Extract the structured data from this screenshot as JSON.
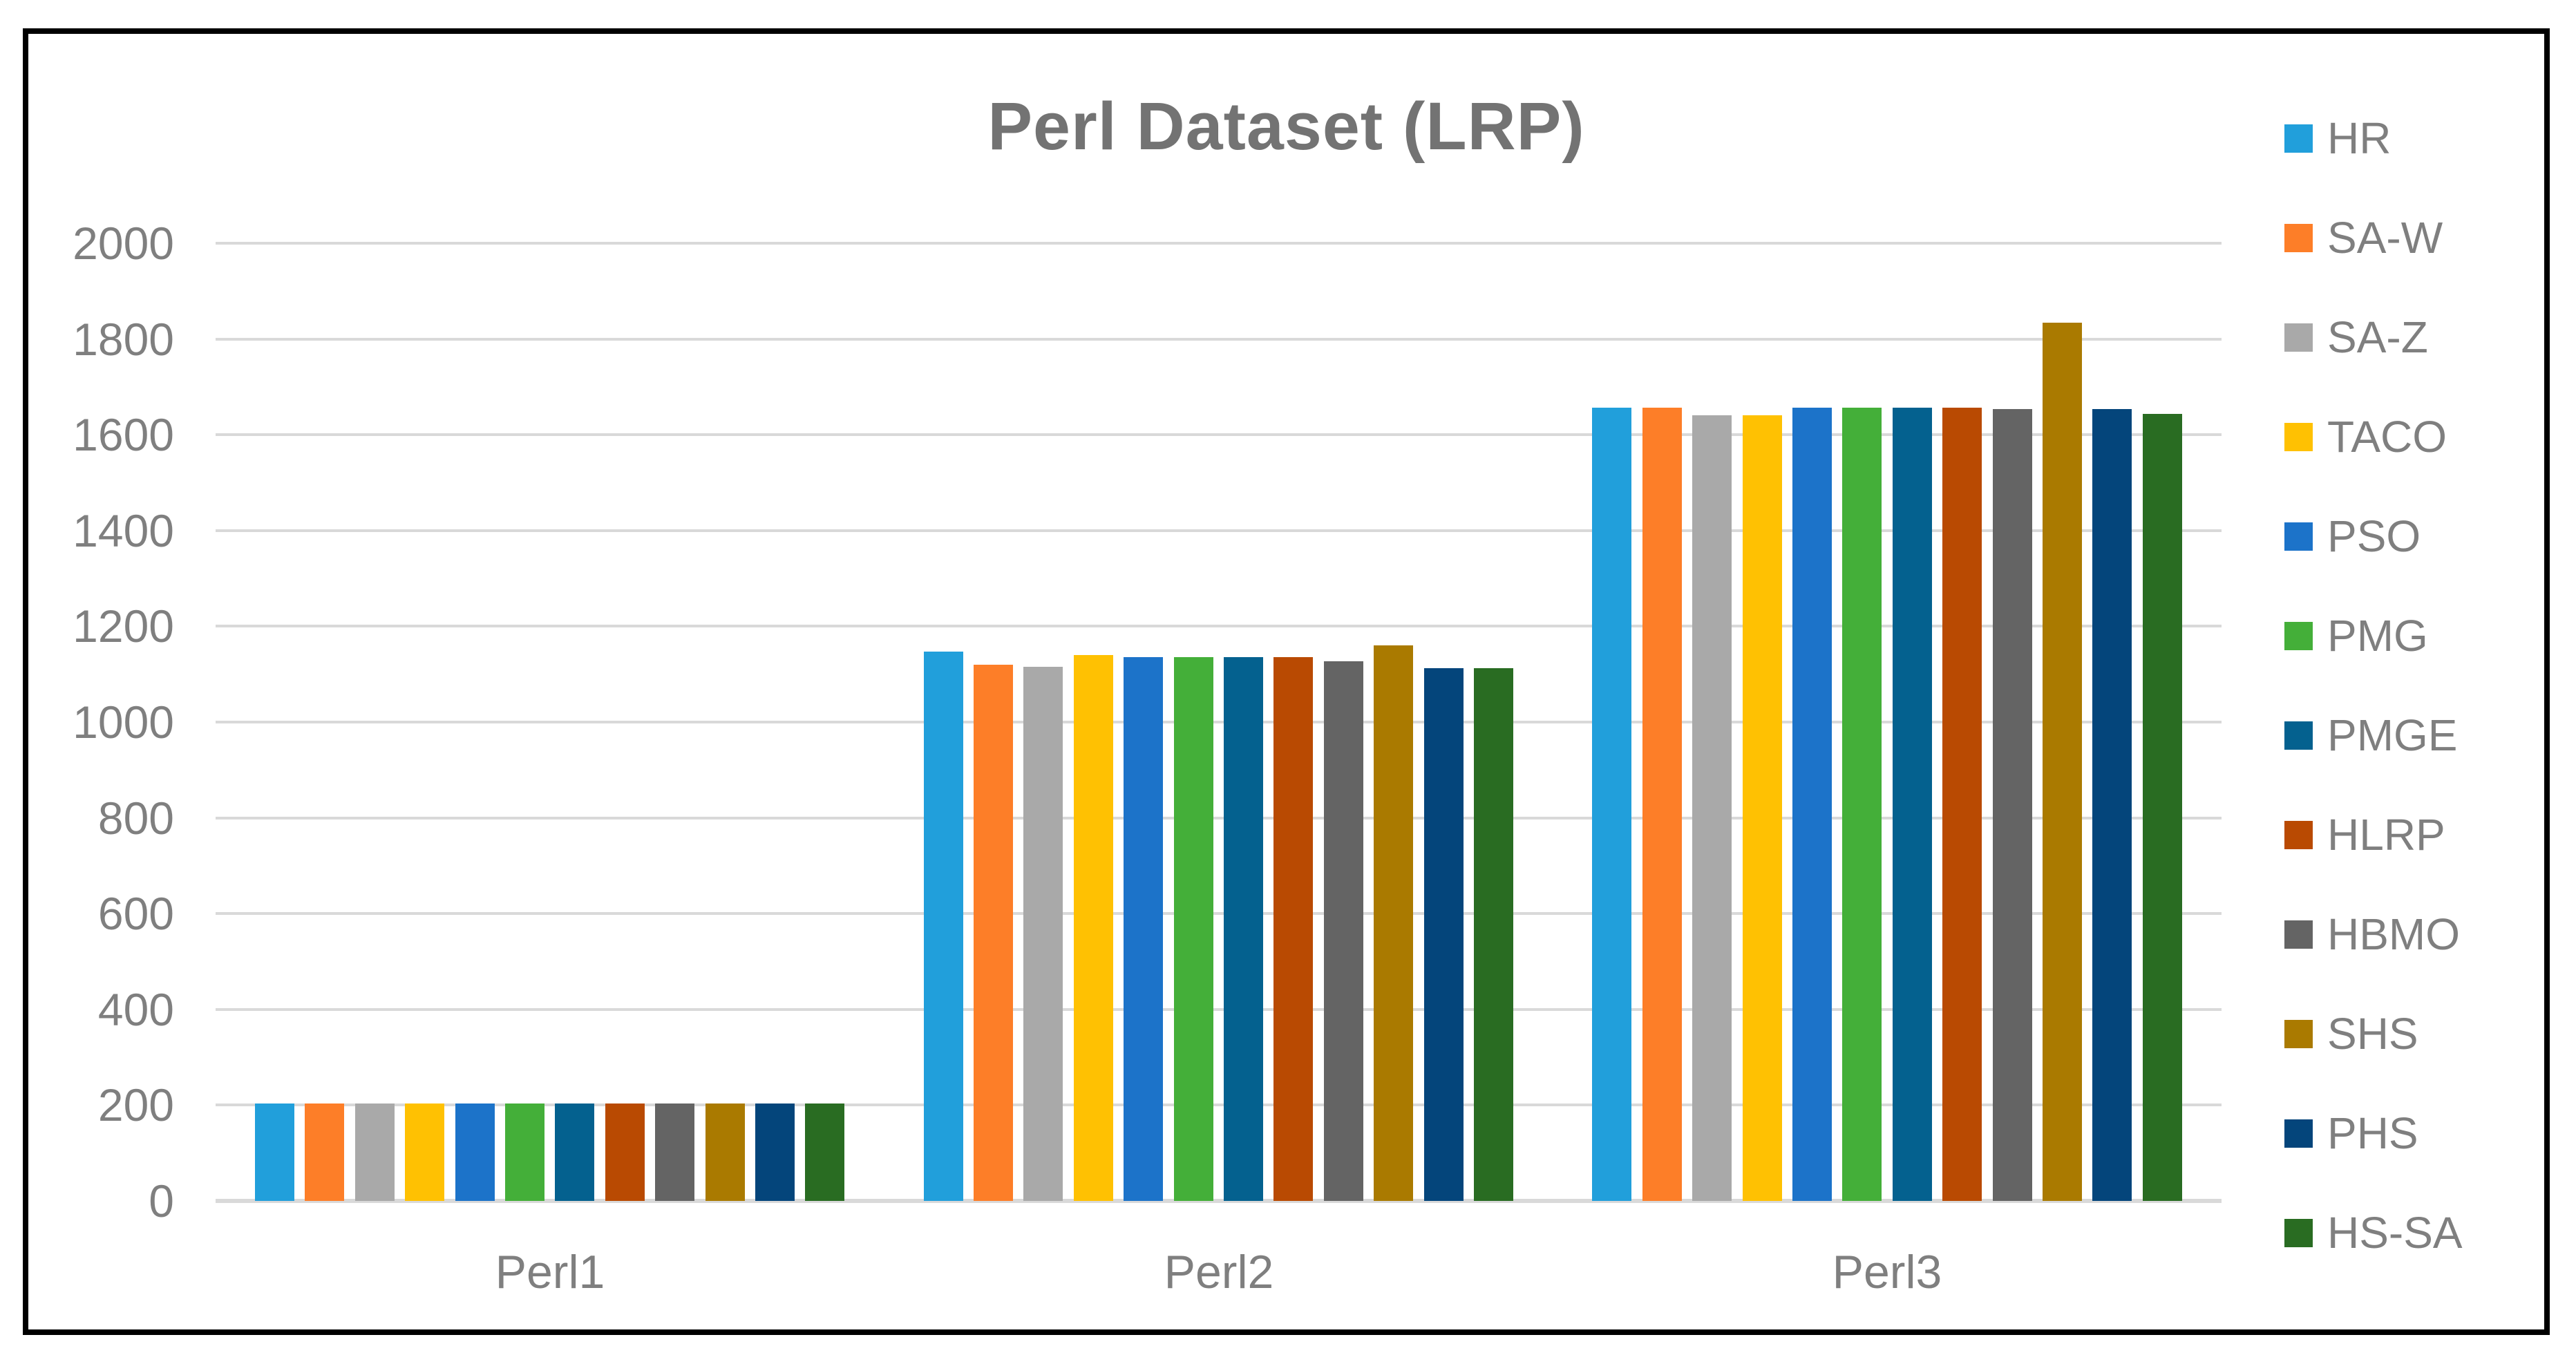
{
  "chart_data": {
    "type": "bar",
    "title": "Perl Dataset (LRP)",
    "categories": [
      "Perl1",
      "Perl2",
      "Perl3"
    ],
    "series": [
      {
        "name": "HR",
        "color": "#219FDB",
        "values": [
          204,
          1147,
          1656
        ]
      },
      {
        "name": "SA-W",
        "color": "#FD7E28",
        "values": [
          204,
          1120,
          1656
        ]
      },
      {
        "name": "SA-Z",
        "color": "#A9A9A9",
        "values": [
          204,
          1115,
          1641
        ]
      },
      {
        "name": "TACO",
        "color": "#FFC102",
        "values": [
          204,
          1140,
          1641
        ]
      },
      {
        "name": "PSO",
        "color": "#1C73C9",
        "values": [
          204,
          1136,
          1656
        ]
      },
      {
        "name": "PMG",
        "color": "#44AF39",
        "values": [
          204,
          1136,
          1656
        ]
      },
      {
        "name": "PMGE",
        "color": "#04618F",
        "values": [
          204,
          1136,
          1656
        ]
      },
      {
        "name": "HLRP",
        "color": "#B94A02",
        "values": [
          204,
          1136,
          1657
        ]
      },
      {
        "name": "HBMO",
        "color": "#646464",
        "values": [
          204,
          1127,
          1654
        ]
      },
      {
        "name": "SHS",
        "color": "#AA7A00",
        "values": [
          204,
          1160,
          1834
        ]
      },
      {
        "name": "PHS",
        "color": "#04457B",
        "values": [
          204,
          1113,
          1654
        ]
      },
      {
        "name": "HS-SA",
        "color": "#296C22",
        "values": [
          204,
          1113,
          1644
        ]
      }
    ],
    "xlabel": "",
    "ylabel": "",
    "ylim": [
      0,
      2000
    ],
    "ytick_step": 200,
    "yticks": [
      "0",
      "200",
      "400",
      "600",
      "800",
      "1000",
      "1200",
      "1400",
      "1600",
      "1800",
      "2000"
    ],
    "grid": true,
    "legend_position": "right",
    "style": {
      "text_color": "#7F7F7F",
      "title_color": "#737373",
      "gridline_color": "#D9D9D9",
      "background": "#FFFFFF",
      "border_color": "#000000"
    }
  }
}
